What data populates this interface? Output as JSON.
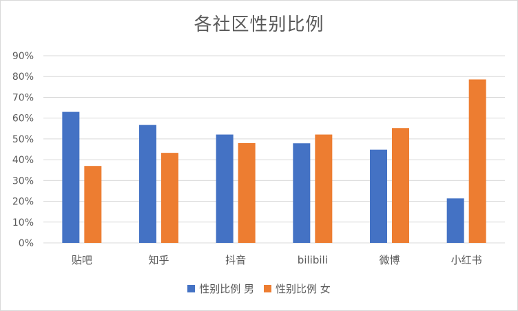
{
  "chart_data": {
    "type": "bar",
    "title": "各社区性别比例",
    "categories": [
      "贴吧",
      "知乎",
      "抖音",
      "bilibili",
      "微博",
      "小红书"
    ],
    "series": [
      {
        "name": "性别比例 男",
        "color": "#4472c4",
        "values": [
          63,
          56.7,
          52.1,
          47.9,
          44.8,
          21.4
        ]
      },
      {
        "name": "性别比例 女",
        "color": "#ed7d31",
        "values": [
          37,
          43.3,
          48,
          52.1,
          55.2,
          78.6
        ]
      }
    ],
    "ylim": [
      0,
      90
    ],
    "yticks": [
      0,
      10,
      20,
      30,
      40,
      50,
      60,
      70,
      80,
      90
    ],
    "ytick_labels": [
      "0%",
      "10%",
      "20%",
      "30%",
      "40%",
      "50%",
      "60%",
      "70%",
      "80%",
      "90%"
    ],
    "grid": true,
    "legend_position": "bottom",
    "xlabel": "",
    "ylabel": ""
  }
}
